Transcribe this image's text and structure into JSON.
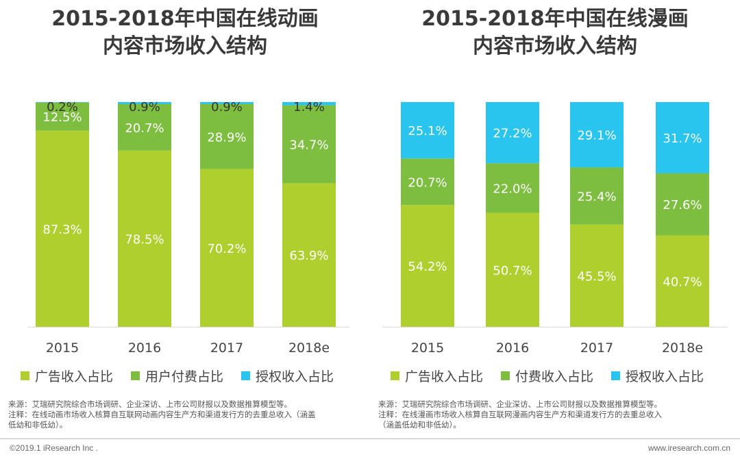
{
  "colors": {
    "ad": "#AECF2E",
    "paid": "#7DBE40",
    "license": "#29C5EE",
    "label_light": "#ffffff",
    "label_dark": "#333333"
  },
  "chart_data": [
    {
      "type": "bar",
      "stacked": true,
      "title_line1": "2015-2018年中国在线动画",
      "title_line2": "内容市场收入结构",
      "categories": [
        "2015",
        "2016",
        "2017",
        "2018e"
      ],
      "ylim": [
        0,
        100
      ],
      "series": [
        {
          "name": "广告收入占比",
          "color_key": "ad",
          "values": [
            87.3,
            78.5,
            70.2,
            63.9
          ],
          "labels": [
            "87.3%",
            "78.5%",
            "70.2%",
            "63.9%"
          ]
        },
        {
          "name": "用户付费占比",
          "color_key": "paid",
          "values": [
            12.5,
            20.7,
            28.9,
            34.7
          ],
          "labels": [
            "12.5%",
            "20.7%",
            "28.9%",
            "34.7%"
          ]
        },
        {
          "name": "授权收入占比",
          "color_key": "license",
          "values": [
            0.2,
            0.9,
            0.9,
            1.4
          ],
          "labels": [
            "0.2%",
            "0.9%",
            "0.9%",
            "1.4%"
          ]
        }
      ],
      "legend_position": "bottom",
      "grid": false,
      "notes": [
        "来源：艾瑞研究院综合市场调研、企业深访、上市公司财报以及数据推算模型等。",
        "注释：在线动画市场收入核算自互联网动画内容生产方和渠道发行方的去重总收入（涵盖",
        "低幼和非低幼）。"
      ]
    },
    {
      "type": "bar",
      "stacked": true,
      "title_line1": "2015-2018年中国在线漫画",
      "title_line2": "内容市场收入结构",
      "categories": [
        "2015",
        "2016",
        "2017",
        "2018e"
      ],
      "ylim": [
        0,
        100
      ],
      "series": [
        {
          "name": "广告收入占比",
          "color_key": "ad",
          "values": [
            54.2,
            50.7,
            45.5,
            40.7
          ],
          "labels": [
            "54.2%",
            "50.7%",
            "45.5%",
            "40.7%"
          ]
        },
        {
          "name": "付费收入占比",
          "color_key": "paid",
          "values": [
            20.7,
            22.0,
            25.4,
            27.6
          ],
          "labels": [
            "20.7%",
            "22.0%",
            "25.4%",
            "27.6%"
          ]
        },
        {
          "name": "授权收入占比",
          "color_key": "license",
          "values": [
            25.1,
            27.2,
            29.1,
            31.7
          ],
          "labels": [
            "25.1%",
            "27.2%",
            "29.1%",
            "31.7%"
          ]
        }
      ],
      "legend_position": "bottom",
      "grid": false,
      "notes": [
        "来源：艾瑞研究院综合市场调研、企业深访、上市公司财报以及数据推算模型等。",
        "注释：在线漫画市场收入核算自互联网漫画内容生产方和渠道发行方的去重总收入",
        "（涵盖低幼和非低幼）。"
      ]
    }
  ],
  "footer": {
    "left": "©2019.1 iResearch Inc .",
    "right": "www.iresearch.com.cn"
  }
}
